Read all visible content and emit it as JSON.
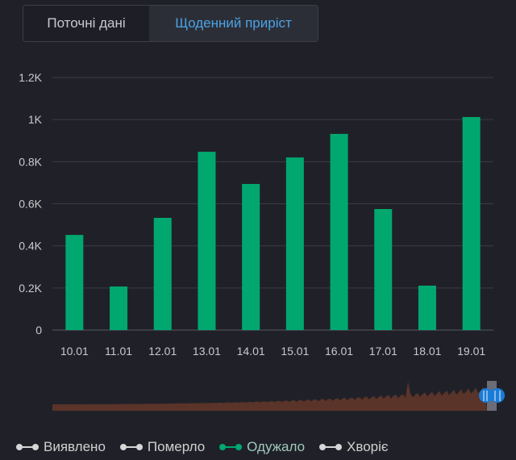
{
  "tabs": [
    {
      "label": "Поточні дані",
      "active": false
    },
    {
      "label": "Щоденний приріст",
      "active": true
    }
  ],
  "chart_data": {
    "type": "bar",
    "categories": [
      "10.01",
      "11.01",
      "12.01",
      "13.01",
      "14.01",
      "15.01",
      "16.01",
      "17.01",
      "18.01",
      "19.01"
    ],
    "values": [
      452,
      207,
      533,
      847,
      694,
      820,
      932,
      575,
      211,
      1012
    ],
    "ylim": [
      0,
      1200
    ],
    "yticks": [
      "0",
      "0.2K",
      "0.4K",
      "0.6K",
      "0.8K",
      "1K",
      "1.2K"
    ],
    "grid": true,
    "bar_color": "#00a870",
    "legend_placement": "bottom",
    "legend": [
      {
        "name": "Виявлено",
        "color": "#d6d6d6"
      },
      {
        "name": "Померло",
        "color": "#d6d6d6"
      },
      {
        "name": "Одужало",
        "color": "#00a870"
      },
      {
        "name": "Хворіє",
        "color": "#d6d6d6"
      }
    ]
  },
  "colors": {
    "tab_active": "#4aa3e6",
    "overview": "#5a3329",
    "slider_handle": "#1a7bd8"
  }
}
